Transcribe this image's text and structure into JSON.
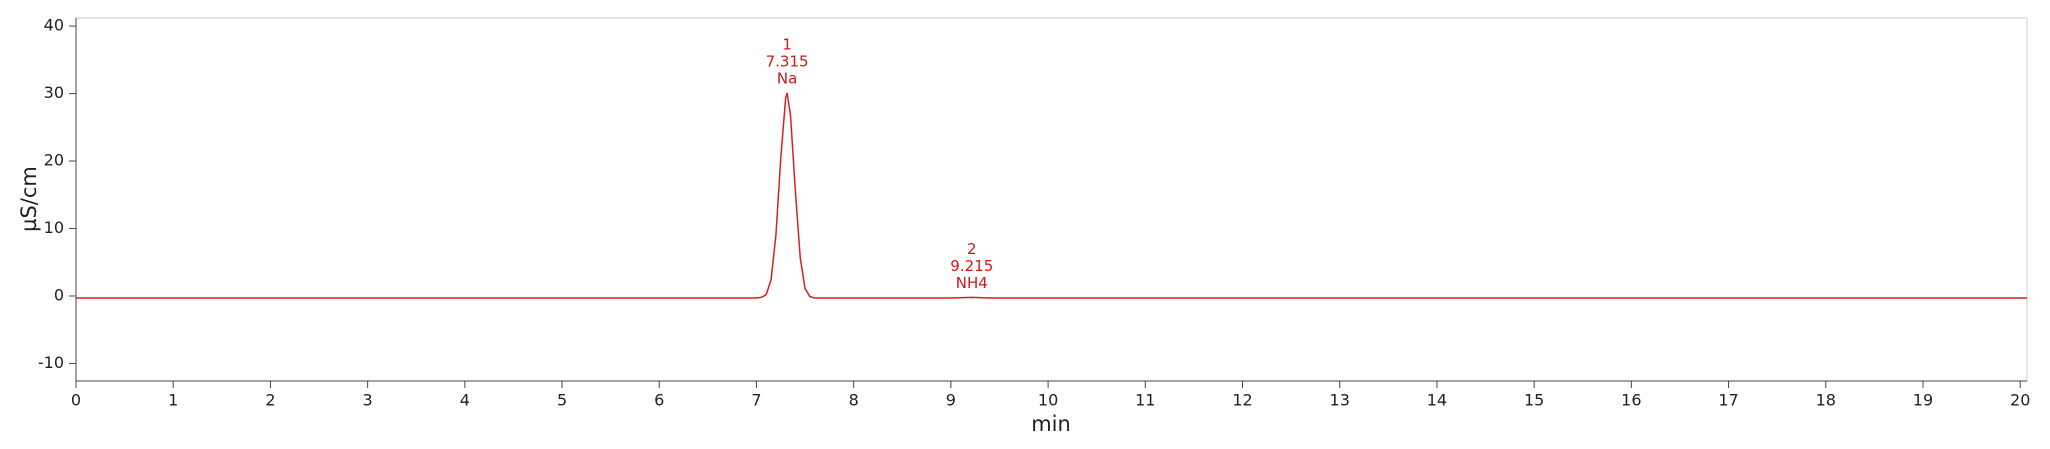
{
  "chart_data": {
    "type": "line",
    "xlabel": "min",
    "ylabel": "µS/cm",
    "x": [
      0,
      6.9,
      7.0,
      7.05,
      7.1,
      7.15,
      7.2,
      7.25,
      7.3,
      7.315,
      7.35,
      7.4,
      7.45,
      7.5,
      7.55,
      7.6,
      7.8,
      9.0,
      9.215,
      9.4,
      20.07
    ],
    "series": [
      {
        "name": null,
        "color": "#d62020",
        "values": [
          -0.3,
          -0.3,
          -0.3,
          -0.2,
          0.2,
          2.4,
          9.0,
          20.4,
          29.3,
          30.1,
          26.8,
          15.6,
          5.7,
          1.1,
          -0.1,
          -0.3,
          -0.3,
          -0.3,
          -0.2,
          -0.3,
          -0.3
        ]
      }
    ],
    "annotations": [
      {
        "lines": [
          "1",
          "7.315",
          "Na"
        ],
        "x": 7.315,
        "y": 30.1
      },
      {
        "lines": [
          "2",
          "9.215",
          "NH4"
        ],
        "x": 9.215,
        "y": -0.2
      }
    ],
    "xlim": [
      0,
      20.07
    ],
    "ylim": [
      -12.6,
      41.2
    ],
    "xticks": [
      0,
      1,
      2,
      3,
      4,
      5,
      6,
      7,
      8,
      9,
      10,
      11,
      12,
      13,
      14,
      15,
      16,
      17,
      18,
      19,
      20
    ],
    "yticks": [
      -10,
      0,
      10,
      20,
      30,
      40
    ]
  }
}
